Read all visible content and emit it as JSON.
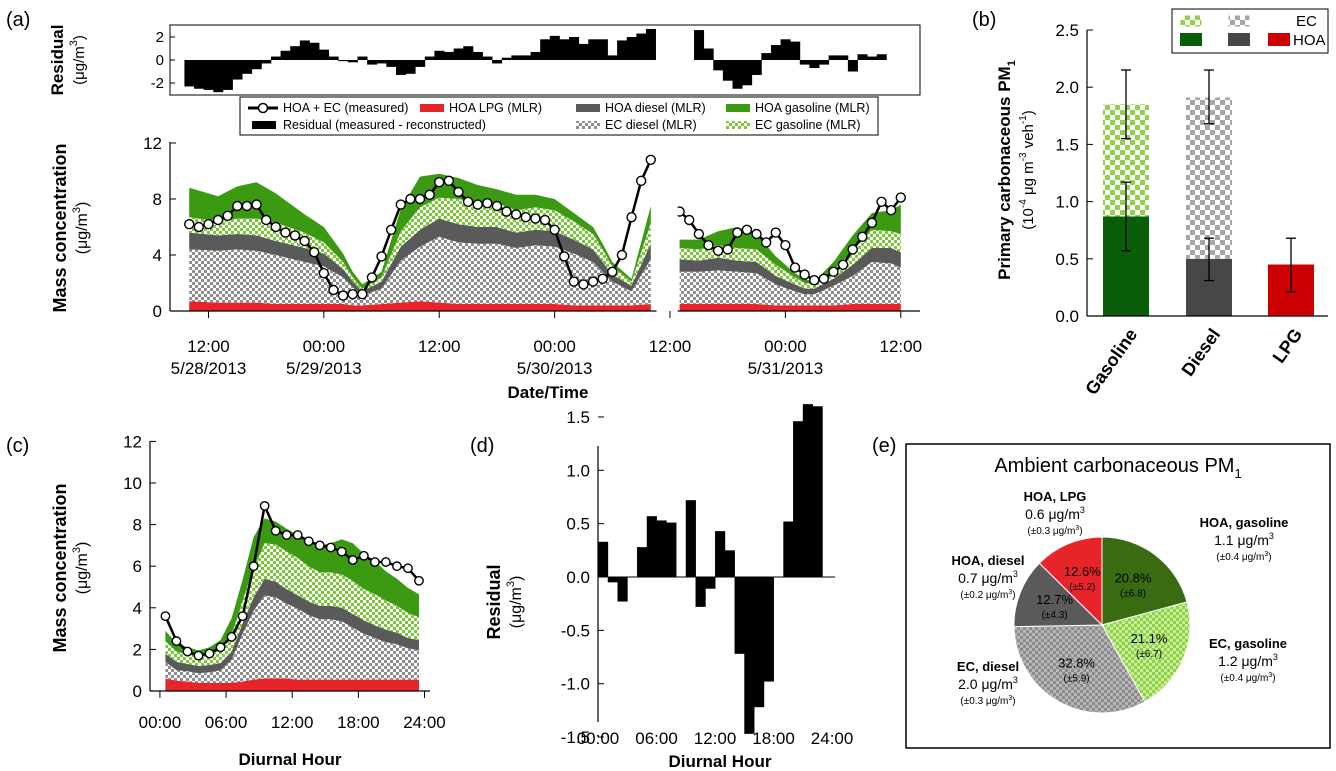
{
  "colors": {
    "hoa_gas": "#3c9a12",
    "ec_gas": "#8fd24a",
    "hoa_dsl": "#5a5a5a",
    "ec_dsl": "#a8a8a8",
    "lpg": "#e8242b",
    "resid": "#000000",
    "bar_gas": "#0a5e0a",
    "bar_dsl": "#474747",
    "bar_lpg": "#cc0000",
    "pie_hoa_gas": "#3a6b12"
  },
  "panels": {
    "a": "(a)",
    "b": "(b)",
    "c": "(c)",
    "d": "(d)",
    "e": "(e)"
  },
  "legend_a": {
    "measured": "HOA + EC (measured)",
    "lpg": "HOA LPG (MLR)",
    "hoa_diesel": "HOA diesel (MLR)",
    "hoa_gasoline": "HOA gasoline (MLR)",
    "residual": "Residual (measured - reconstructed)",
    "ec_diesel": "EC diesel (MLR)",
    "ec_gasoline": "EC gasoline (MLR)"
  },
  "chart_data": [
    {
      "id": "a_residual",
      "type": "bar",
      "ylabel": "Residual",
      "yunit": "(μg/m",
      "ylim": [
        -3,
        3
      ],
      "yticks": [
        "2",
        "0",
        "-2"
      ],
      "x_hours": [
        10,
        11,
        12,
        13,
        14,
        15,
        16,
        17,
        18,
        19,
        20,
        21,
        22,
        23,
        24,
        25,
        26,
        27,
        28,
        29,
        30,
        31,
        32,
        33,
        34,
        35,
        36,
        37,
        38,
        39,
        40,
        41,
        42,
        43,
        44,
        45,
        46,
        47,
        48,
        49,
        50,
        51,
        52,
        53,
        54,
        55,
        56,
        57,
        58,
        59,
        60,
        61,
        62,
        63,
        64,
        65,
        66,
        67,
        68,
        69,
        70,
        71,
        72,
        73,
        74,
        75,
        76,
        77,
        78,
        79,
        80,
        81,
        82,
        83,
        84
      ],
      "values": [
        -2.3,
        -2.5,
        -2.6,
        -2.8,
        -2.6,
        -1.7,
        -1.2,
        -0.8,
        -0.3,
        0.3,
        0.8,
        1.2,
        1.7,
        1.5,
        0.9,
        0.3,
        -0.1,
        -0.2,
        0.3,
        -0.4,
        -0.3,
        -0.6,
        -1.3,
        -1.2,
        -0.6,
        0.3,
        0.8,
        0.7,
        1.0,
        1.2,
        0.7,
        0.3,
        -0.3,
        0.2,
        0.4,
        0.4,
        0.7,
        1.8,
        2.1,
        1.8,
        2.0,
        1.4,
        1.8,
        1.8,
        0.4,
        1.7,
        2.0,
        2.3,
        2.7,
        null,
        null,
        null,
        null,
        2.6,
        1.0,
        -0.9,
        -1.8,
        -2.5,
        -2.2,
        -1.3,
        0.6,
        1.3,
        1.8,
        1.6,
        -0.4,
        -0.7,
        -0.4,
        0.4,
        0.4,
        -1.0,
        0.5,
        0.3,
        0.5,
        null,
        null
      ]
    },
    {
      "id": "a_mass",
      "type": "area",
      "ylabel": "Mass concentration",
      "yunit": "(μg/m",
      "xlabel": "Date/Time",
      "ylim": [
        0,
        12
      ],
      "yticks": [
        "0",
        "4",
        "8",
        "12"
      ],
      "xticks": [
        {
          "h": 12,
          "time": "12:00",
          "date": "5/28/2013"
        },
        {
          "h": 24,
          "time": "00:00",
          "date": "5/29/2013"
        },
        {
          "h": 36,
          "time": "12:00",
          "date": ""
        },
        {
          "h": 48,
          "time": "00:00",
          "date": "5/30/2013"
        },
        {
          "h": 60,
          "time": "12:00",
          "date": ""
        },
        {
          "h": 72,
          "time": "00:00",
          "date": "5/31/2013"
        },
        {
          "h": 84,
          "time": "12:00",
          "date": ""
        }
      ],
      "segments": [
        {
          "start": 10,
          "end": 58
        },
        {
          "start": 61,
          "end": 84
        }
      ],
      "x_hours": [
        10,
        13,
        15,
        17,
        19,
        22,
        24,
        26,
        27,
        28,
        30,
        32,
        34,
        36,
        38,
        40,
        42,
        44,
        46,
        48,
        50,
        52,
        53,
        54,
        56,
        58,
        61,
        63,
        65,
        67,
        69,
        71,
        73,
        74,
        75,
        77,
        79,
        81,
        83,
        84
      ],
      "lpg": [
        0.7,
        0.6,
        0.6,
        0.6,
        0.5,
        0.5,
        0.5,
        0.5,
        0.4,
        0.4,
        0.5,
        0.6,
        0.7,
        0.6,
        0.5,
        0.5,
        0.5,
        0.5,
        0.5,
        0.5,
        0.4,
        0.4,
        0.4,
        0.4,
        0.4,
        0.5,
        0.5,
        0.5,
        0.5,
        0.5,
        0.5,
        0.4,
        0.4,
        0.4,
        0.4,
        0.4,
        0.5,
        0.5,
        0.5,
        0.5
      ],
      "ec_diesel": [
        3.7,
        3.7,
        3.8,
        3.7,
        3.5,
        3.0,
        2.7,
        1.9,
        1.3,
        0.7,
        1.1,
        3.0,
        3.9,
        4.7,
        4.4,
        4.3,
        4.3,
        4.0,
        4.2,
        4.1,
        3.7,
        3.1,
        2.4,
        1.7,
        1.0,
        3.2,
        2.3,
        2.3,
        2.4,
        2.3,
        2.2,
        1.5,
        1.0,
        0.8,
        0.8,
        1.4,
        2.0,
        3.0,
        2.9,
        2.6
      ],
      "hoa_diesel": [
        1.2,
        1.1,
        1.1,
        1.1,
        1.0,
        1.0,
        0.9,
        0.6,
        0.4,
        0.3,
        0.5,
        1.0,
        1.2,
        1.3,
        1.3,
        1.2,
        1.2,
        1.1,
        1.1,
        1.1,
        1.0,
        0.9,
        0.7,
        0.5,
        0.4,
        1.1,
        0.9,
        0.8,
        0.9,
        0.8,
        0.8,
        0.6,
        0.5,
        0.4,
        0.4,
        0.5,
        0.8,
        1.0,
        1.1,
        1.1
      ],
      "ec_gasoline": [
        1.1,
        1.0,
        1.1,
        1.2,
        1.3,
        1.1,
        0.8,
        0.5,
        0.3,
        0.2,
        0.3,
        1.1,
        1.6,
        1.5,
        1.8,
        1.7,
        1.7,
        1.6,
        1.6,
        1.5,
        1.3,
        1.1,
        0.9,
        0.6,
        0.3,
        1.5,
        0.8,
        0.8,
        0.9,
        0.9,
        0.9,
        0.8,
        0.5,
        0.4,
        0.3,
        0.6,
        1.0,
        1.3,
        1.2,
        1.3
      ],
      "hoa_gasoline": [
        2.1,
        1.8,
        2.3,
        2.6,
        2.1,
        1.3,
        1.1,
        0.6,
        0.4,
        0.3,
        0.4,
        1.6,
        2.2,
        1.7,
        1.5,
        1.3,
        1.0,
        1.1,
        0.9,
        0.8,
        0.6,
        0.5,
        0.4,
        0.3,
        0.2,
        1.2,
        0.6,
        0.7,
        1.0,
        1.5,
        1.1,
        0.6,
        0.3,
        0.3,
        0.2,
        0.6,
        1.1,
        1.2,
        1.5,
        2.1
      ],
      "measured_x": [
        10,
        11,
        12,
        13,
        14,
        15,
        16,
        17,
        18,
        19,
        20,
        21,
        22,
        23,
        24,
        25,
        26,
        27,
        28,
        29,
        30,
        31,
        32,
        33,
        34,
        35,
        36,
        37,
        38,
        39,
        40,
        41,
        42,
        43,
        44,
        45,
        46,
        47,
        48,
        49,
        50,
        51,
        52,
        53,
        54,
        55,
        56,
        57,
        58,
        61,
        62,
        63,
        64,
        65,
        66,
        67,
        68,
        69,
        70,
        71,
        72,
        73,
        74,
        75,
        76,
        77,
        78,
        79,
        80,
        81,
        82,
        83,
        84
      ],
      "measured": [
        6.2,
        6.0,
        6.2,
        6.5,
        6.8,
        7.5,
        7.5,
        7.6,
        6.5,
        6.0,
        5.6,
        5.4,
        5.0,
        4.2,
        2.7,
        1.5,
        1.1,
        1.2,
        1.2,
        2.4,
        3.9,
        5.8,
        7.6,
        8.0,
        8.0,
        8.3,
        9.2,
        9.3,
        8.5,
        7.8,
        7.6,
        7.7,
        7.5,
        7.1,
        6.9,
        6.7,
        6.6,
        6.5,
        5.8,
        3.9,
        2.1,
        1.9,
        2.1,
        2.3,
        2.8,
        4.0,
        6.7,
        9.3,
        10.8,
        7.1,
        6.5,
        5.5,
        4.7,
        4.3,
        4.4,
        5.6,
        5.8,
        5.5,
        4.9,
        5.6,
        4.7,
        3.1,
        2.6,
        2.2,
        2.3,
        2.8,
        3.3,
        4.4,
        5.3,
        6.3,
        7.8,
        7.2,
        8.1
      ]
    },
    {
      "id": "b_bars",
      "type": "bar",
      "ylabel": "Primary carbonaceous PM",
      "ylabel_sub": "1",
      "yunit_pre": "(10",
      "yunit_exp": "-4",
      "yunit_mid": " μg m",
      "yunit_exp2": "-3",
      "yunit_post": " veh",
      "yunit_exp3": "-1",
      "ylim": [
        0,
        2.5
      ],
      "yticks": [
        "0.0",
        "0.5",
        "1.0",
        "1.5",
        "2.0",
        "2.5"
      ],
      "categories": [
        "Gasoline",
        "Diesel",
        "LPG"
      ],
      "hoa": [
        0.87,
        0.5,
        0.45
      ],
      "ec": [
        0.98,
        1.41,
        0
      ],
      "err_lo": [
        0.57,
        0.31,
        0.21
      ],
      "err_hi": [
        2.15,
        2.15,
        0.68
      ],
      "err_mid": [
        0.87,
        0.5,
        0.45
      ],
      "err_mid_lo": [
        0.57,
        0.31,
        0.21
      ],
      "err_mid_hi": [
        1.17,
        0.68,
        0.68
      ],
      "err_top_lo": [
        1.55,
        1.68,
        null
      ],
      "err_top_hi": [
        2.15,
        2.15,
        null
      ],
      "legend": {
        "ec": "EC",
        "hoa": "HOA"
      }
    },
    {
      "id": "c_diurnal",
      "type": "area",
      "ylabel": "Mass concentration",
      "yunit": "(μg/m",
      "xlabel": "Diurnal Hour",
      "ylim": [
        0,
        12
      ],
      "yticks": [
        "0",
        "2",
        "4",
        "6",
        "8",
        "10",
        "12"
      ],
      "xticks": [
        "00:00",
        "06:00",
        "12:00",
        "18:00",
        "24:00"
      ],
      "x_hours": [
        0.5,
        1.5,
        2.5,
        3.5,
        4.5,
        5.5,
        6.5,
        7.5,
        8.5,
        9.5,
        10.5,
        11.5,
        12.5,
        13.5,
        14.5,
        15.5,
        16.5,
        17.5,
        18.5,
        19.5,
        20.5,
        21.5,
        22.5,
        23.5
      ],
      "lpg": [
        0.6,
        0.5,
        0.45,
        0.4,
        0.4,
        0.4,
        0.4,
        0.45,
        0.55,
        0.6,
        0.6,
        0.6,
        0.55,
        0.55,
        0.55,
        0.55,
        0.55,
        0.55,
        0.55,
        0.55,
        0.55,
        0.55,
        0.55,
        0.55
      ],
      "ec_diesel": [
        0.8,
        0.5,
        0.5,
        0.45,
        0.5,
        0.6,
        1.1,
        2.3,
        3.3,
        4.0,
        3.9,
        3.6,
        3.4,
        3.1,
        2.9,
        2.9,
        2.8,
        2.5,
        2.2,
        2.0,
        1.8,
        1.7,
        1.5,
        1.4
      ],
      "hoa_diesel": [
        0.4,
        0.4,
        0.35,
        0.35,
        0.35,
        0.35,
        0.4,
        0.5,
        0.65,
        0.8,
        0.75,
        0.7,
        0.65,
        0.65,
        0.65,
        0.65,
        0.65,
        0.65,
        0.65,
        0.6,
        0.6,
        0.55,
        0.5,
        0.5
      ],
      "ec_gasoline": [
        0.6,
        0.5,
        0.45,
        0.45,
        0.5,
        0.6,
        0.8,
        1.1,
        1.4,
        1.7,
        1.8,
        1.8,
        1.8,
        1.7,
        1.6,
        1.6,
        1.6,
        1.6,
        1.5,
        1.5,
        1.4,
        1.3,
        1.2,
        1.1
      ],
      "hoa_gasoline": [
        0.5,
        0.4,
        0.35,
        0.3,
        0.35,
        0.5,
        0.8,
        1.0,
        1.5,
        1.2,
        1.1,
        1.1,
        1.1,
        1.2,
        1.3,
        1.4,
        1.7,
        1.8,
        1.7,
        1.6,
        1.4,
        1.3,
        1.2,
        1.1
      ],
      "measured": [
        3.6,
        2.4,
        1.9,
        1.7,
        1.8,
        2.1,
        2.6,
        3.6,
        6.0,
        8.9,
        7.7,
        7.5,
        7.5,
        7.2,
        7.0,
        6.9,
        6.7,
        6.3,
        6.5,
        6.2,
        6.2,
        6.0,
        5.9,
        5.3
      ]
    },
    {
      "id": "d_residual",
      "type": "bar",
      "ylabel": "Residual",
      "yunit": "(μg/m",
      "xlabel": "Diurnal Hour",
      "ylim": [
        -1.7,
        1.7
      ],
      "yticks": [
        "1.5",
        "1.0",
        "0.5",
        "0.0",
        "-0.5",
        "-1.0",
        "-1.5"
      ],
      "xticks": [
        "00:00",
        "06:00",
        "12:00",
        "18:00",
        "24:00"
      ],
      "x_hours": [
        0.5,
        1.5,
        2.5,
        3.5,
        4.5,
        5.5,
        6.5,
        7.5,
        8.5,
        9.5,
        10.5,
        11.5,
        12.5,
        13.5,
        14.5,
        15.5,
        16.5,
        17.5,
        18.5,
        19.5,
        20.5,
        21.5,
        22.5,
        23.5
      ],
      "values": [
        0.33,
        -0.05,
        -0.23,
        0,
        0.28,
        0.57,
        0.53,
        0.51,
        0,
        0.72,
        -0.28,
        -0.11,
        0.43,
        0.25,
        -0.72,
        -1.47,
        -1.22,
        -0.98,
        0,
        0.52,
        1.46,
        1.62,
        1.6,
        0
      ]
    },
    {
      "id": "e_pie",
      "type": "pie",
      "title": "Ambient carbonaceous PM",
      "title_sub": "1",
      "slices": [
        {
          "key": "hoa_gasoline",
          "pct": 20.8,
          "pct_label": "20.8%",
          "err": "(±6.8)",
          "name": "HOA, gasoline",
          "value": "1.1 μg/m",
          "unc": "(±0.4 μg/m"
        },
        {
          "key": "ec_gasoline",
          "pct": 21.1,
          "pct_label": "21.1%",
          "err": "(±6.7)",
          "name": "EC, gasoline",
          "value": "1.2 μg/m",
          "unc": "(±0.4 μg/m"
        },
        {
          "key": "ec_diesel",
          "pct": 32.8,
          "pct_label": "32.8%",
          "err": "(±5.9)",
          "name": "EC, diesel",
          "value": "2.0 μg/m",
          "unc": "(±0.3 μg/m"
        },
        {
          "key": "hoa_diesel",
          "pct": 12.7,
          "pct_label": "12.7%",
          "err": "(±4.3)",
          "name": "HOA, diesel",
          "value": "0.7 μg/m",
          "unc": "(±0.2 μg/m"
        },
        {
          "key": "lpg",
          "pct": 12.6,
          "pct_label": "12.6%",
          "err": "(±5.2)",
          "name": "HOA, LPG",
          "value": "0.6 μg/m",
          "unc": "(±0.3 μg/m"
        }
      ]
    }
  ]
}
